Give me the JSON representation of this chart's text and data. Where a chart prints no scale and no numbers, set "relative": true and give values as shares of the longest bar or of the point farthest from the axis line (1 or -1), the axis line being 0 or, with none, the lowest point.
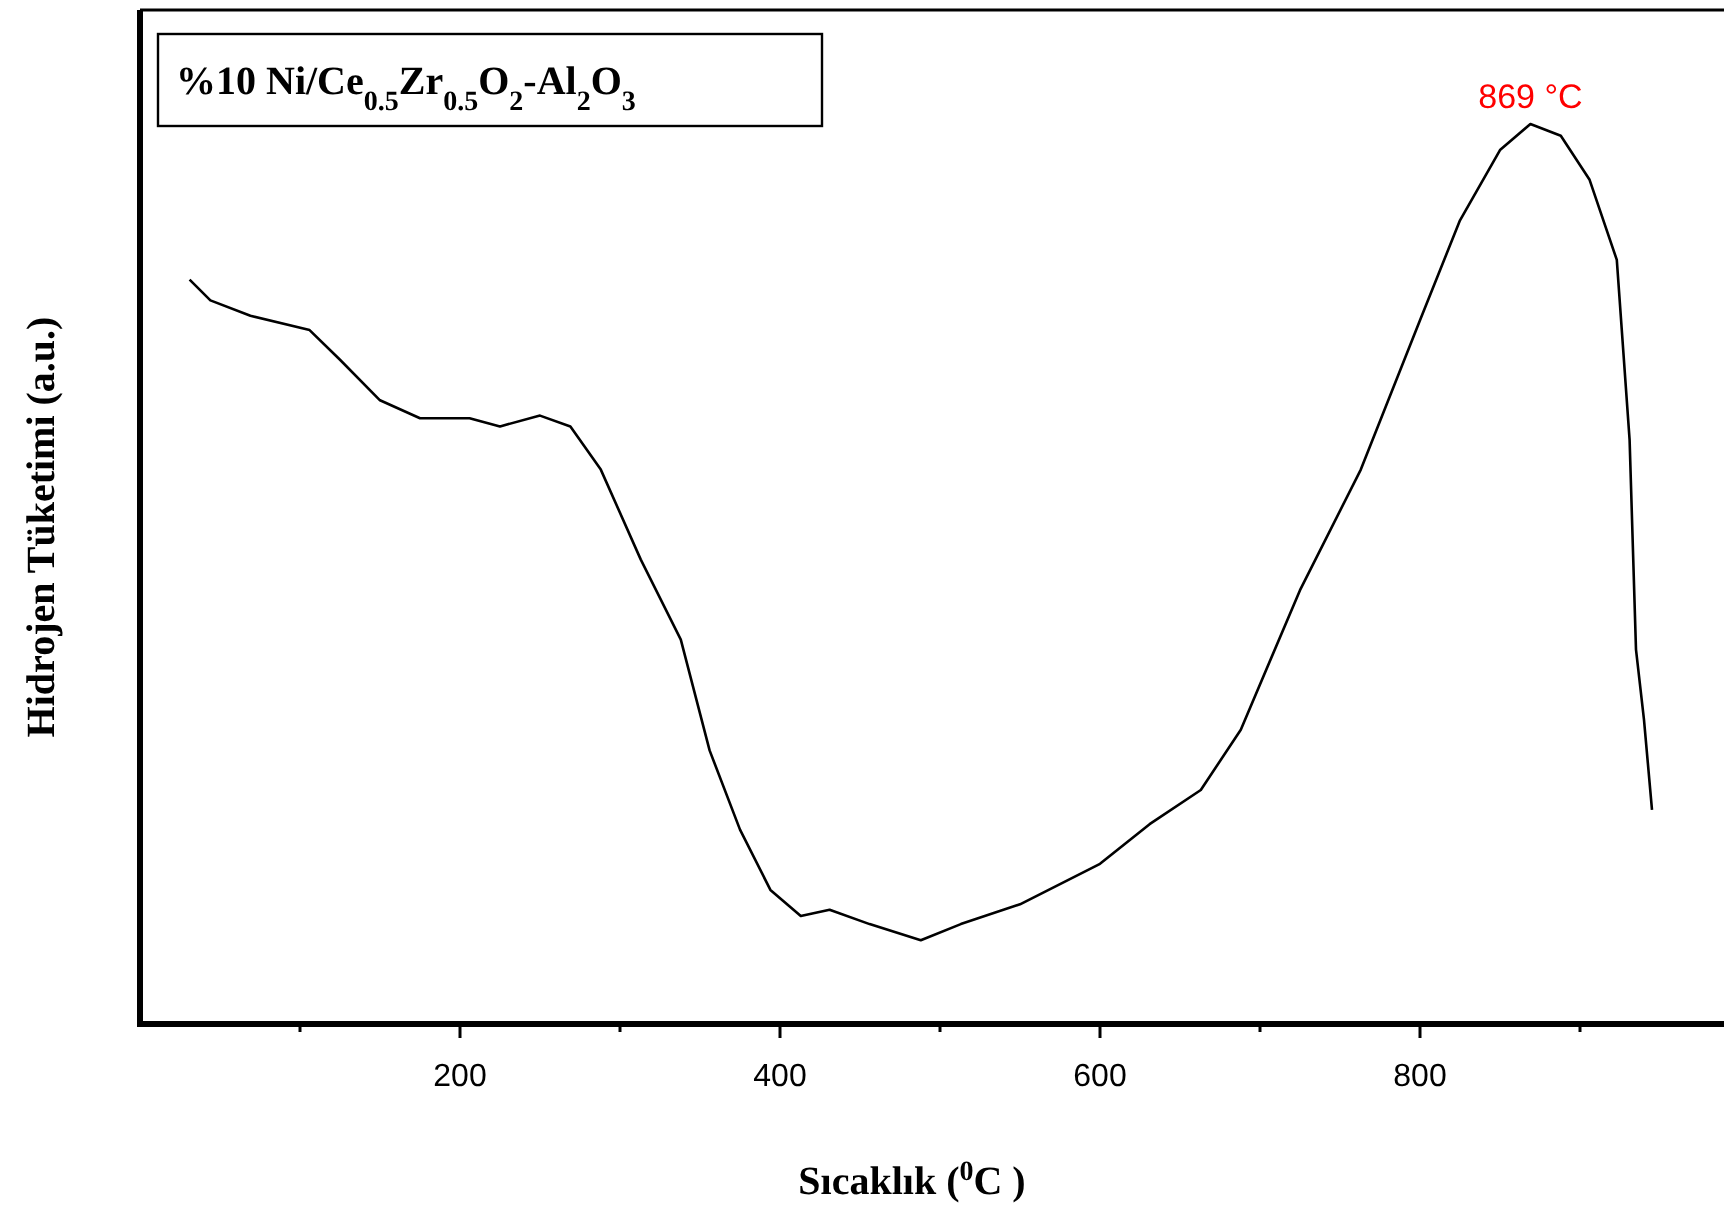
{
  "chart_data": {
    "type": "line",
    "title": "%10 Ni/Ce$_{0.5}$Zr$_{0.5}$O$_{2}$-Al$_{2}$O$_{3}$",
    "xlabel": "Sıcaklık ($^{0}$C )",
    "ylabel": "Hidrojen Tüketimi (a.u.)",
    "relative": true,
    "xlim": [
      0,
      990
    ],
    "xticks": [
      {
        "value": 100,
        "label": null
      },
      200,
      {
        "value": 300,
        "label": null
      },
      400,
      {
        "value": 500,
        "label": null
      },
      600,
      {
        "value": 700,
        "label": null
      },
      800,
      {
        "value": 900,
        "label": null
      }
    ],
    "series": [
      {
        "color": "#000000",
        "x": [
          31,
          44,
          69,
          106,
          125,
          150,
          175,
          206,
          225,
          250,
          269,
          288,
          313,
          338,
          356,
          375,
          394,
          413,
          431,
          456,
          488,
          513,
          550,
          600,
          631,
          663,
          688,
          725,
          763,
          800,
          825,
          850,
          869,
          888,
          906,
          923,
          931,
          935,
          940,
          945
        ],
        "values": [
          0.827,
          0.804,
          0.787,
          0.771,
          0.738,
          0.693,
          0.673,
          0.673,
          0.664,
          0.676,
          0.664,
          0.616,
          0.516,
          0.427,
          0.304,
          0.216,
          0.149,
          0.12,
          0.127,
          0.111,
          0.093,
          0.111,
          0.133,
          0.178,
          0.222,
          0.26,
          0.327,
          0.482,
          0.616,
          0.782,
          0.893,
          0.971,
          1.0,
          0.987,
          0.938,
          0.849,
          0.649,
          0.416,
          0.338,
          0.238
        ]
      }
    ],
    "annotations": [
      {
        "text": "869 °C",
        "x": 869,
        "y": 1.0
      }
    ],
    "grid": false,
    "marker": "none",
    "line_style": "solid"
  }
}
